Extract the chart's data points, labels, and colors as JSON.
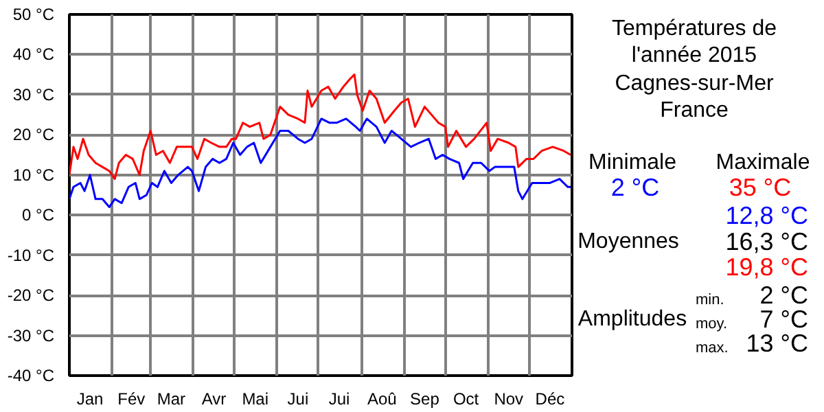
{
  "chart_data": [
    {
      "type": "line",
      "xlim": [
        "2015-01-01",
        "2016-01-01"
      ],
      "ylim": [
        -40,
        50
      ],
      "xticks": [
        {
          "value": "2015-01-01",
          "label": null
        },
        {
          "value": "2015-01-16",
          "label": "Jan"
        },
        {
          "value": "2015-02-01",
          "label": null
        },
        {
          "value": "2015-02-15",
          "label": "Fév"
        },
        {
          "value": "2015-03-01",
          "label": null
        },
        {
          "value": "2015-03-16",
          "label": "Mar"
        },
        {
          "value": "2015-04-01",
          "label": null
        },
        {
          "value": "2015-04-16",
          "label": "Avr"
        },
        {
          "value": "2015-05-01",
          "label": null
        },
        {
          "value": "2015-05-16",
          "label": "Mai"
        },
        {
          "value": "2015-06-01",
          "label": null
        },
        {
          "value": "2015-06-16",
          "label": "Jui"
        },
        {
          "value": "2015-07-01",
          "label": null
        },
        {
          "value": "2015-07-16",
          "label": "Jui"
        },
        {
          "value": "2015-08-01",
          "label": null
        },
        {
          "value": "2015-08-16",
          "label": "Aoû"
        },
        {
          "value": "2015-09-01",
          "label": null
        },
        {
          "value": "2015-09-16",
          "label": "Sep"
        },
        {
          "value": "2015-10-01",
          "label": null
        },
        {
          "value": "2015-10-16",
          "label": "Oct"
        },
        {
          "value": "2015-11-01",
          "label": null
        },
        {
          "value": "2015-11-16",
          "label": "Nov"
        },
        {
          "value": "2015-12-01",
          "label": null
        },
        {
          "value": "2015-12-16",
          "label": "Déc"
        },
        {
          "value": "2016-01-01",
          "label": null
        }
      ],
      "yticks": [
        {
          "value": -40,
          "label": "-40 °C"
        },
        {
          "value": -30,
          "label": "-30 °C"
        },
        {
          "value": -20,
          "label": "-20 °C"
        },
        {
          "value": -10,
          "label": "-10 °C"
        },
        {
          "value": 0,
          "label": "0 °C"
        },
        {
          "value": 10,
          "label": "10 °C"
        },
        {
          "value": 20,
          "label": "20 °C"
        },
        {
          "value": 30,
          "label": "30 °C"
        },
        {
          "value": 40,
          "label": "40 °C"
        },
        {
          "value": 50,
          "label": "50 °C"
        }
      ],
      "grid": true,
      "line_style": "solid",
      "marker": "none",
      "series": [
        {
          "color": "#ff0000",
          "x": [
            "2015-01-01",
            "2015-01-04",
            "2015-01-07",
            "2015-01-11",
            "2015-01-15",
            "2015-01-20",
            "2015-01-25",
            "2015-01-30",
            "2015-02-03",
            "2015-02-06",
            "2015-02-11",
            "2015-02-16",
            "2015-02-21",
            "2015-02-24",
            "2015-03-01",
            "2015-03-05",
            "2015-03-10",
            "2015-03-15",
            "2015-03-20",
            "2015-03-26",
            "2015-03-31",
            "2015-04-04",
            "2015-04-09",
            "2015-04-14",
            "2015-04-20",
            "2015-04-25",
            "2015-04-29",
            "2015-05-02",
            "2015-05-07",
            "2015-05-12",
            "2015-05-19",
            "2015-05-22",
            "2015-05-27",
            "2015-06-03",
            "2015-06-09",
            "2015-06-16",
            "2015-06-21",
            "2015-06-23",
            "2015-06-26",
            "2015-07-03",
            "2015-07-08",
            "2015-07-13",
            "2015-07-19",
            "2015-07-24",
            "2015-07-27",
            "2015-07-29",
            "2015-08-02",
            "2015-08-07",
            "2015-08-12",
            "2015-08-18",
            "2015-08-25",
            "2015-08-30",
            "2015-09-04",
            "2015-09-09",
            "2015-09-16",
            "2015-09-21",
            "2015-09-26",
            "2015-10-01",
            "2015-10-03",
            "2015-10-09",
            "2015-10-16",
            "2015-10-22",
            "2015-10-31",
            "2015-11-03",
            "2015-11-08",
            "2015-11-16",
            "2015-11-21",
            "2015-11-23",
            "2015-11-29",
            "2015-12-04",
            "2015-12-10",
            "2015-12-18",
            "2015-12-26",
            "2015-12-31"
          ],
          "values": [
            10,
            17,
            14,
            19,
            15,
            13,
            12,
            11,
            9,
            13,
            15,
            14,
            10,
            16,
            21,
            15,
            16,
            13,
            17,
            17,
            17,
            14,
            19,
            18,
            17,
            17,
            19,
            19,
            23,
            22,
            23,
            19,
            20,
            27,
            25,
            24,
            23,
            31,
            27,
            31,
            32,
            29,
            32,
            34,
            35,
            30,
            26,
            31,
            29,
            23,
            26,
            28,
            29,
            22,
            27,
            25,
            23,
            22,
            17,
            21,
            17,
            19,
            23,
            16,
            19,
            18,
            17,
            12,
            14,
            14,
            16,
            17,
            16,
            15
          ]
        },
        {
          "color": "#0000ff",
          "x": [
            "2015-01-01",
            "2015-01-04",
            "2015-01-09",
            "2015-01-12",
            "2015-01-16",
            "2015-01-20",
            "2015-01-25",
            "2015-01-30",
            "2015-02-03",
            "2015-02-08",
            "2015-02-13",
            "2015-02-18",
            "2015-02-21",
            "2015-02-26",
            "2015-03-02",
            "2015-03-06",
            "2015-03-11",
            "2015-03-16",
            "2015-03-21",
            "2015-03-28",
            "2015-03-31",
            "2015-04-05",
            "2015-04-10",
            "2015-04-15",
            "2015-04-20",
            "2015-04-25",
            "2015-04-30",
            "2015-05-05",
            "2015-05-10",
            "2015-05-15",
            "2015-05-20",
            "2015-05-27",
            "2015-06-03",
            "2015-06-09",
            "2015-06-16",
            "2015-06-21",
            "2015-06-26",
            "2015-07-03",
            "2015-07-09",
            "2015-07-14",
            "2015-07-21",
            "2015-07-28",
            "2015-07-31",
            "2015-08-05",
            "2015-08-12",
            "2015-08-18",
            "2015-08-23",
            "2015-08-30",
            "2015-09-06",
            "2015-09-12",
            "2015-09-19",
            "2015-09-24",
            "2015-09-29",
            "2015-10-04",
            "2015-10-11",
            "2015-10-14",
            "2015-10-21",
            "2015-10-27",
            "2015-11-02",
            "2015-11-06",
            "2015-11-13",
            "2015-11-20",
            "2015-11-23",
            "2015-11-26",
            "2015-12-03",
            "2015-12-10",
            "2015-12-16",
            "2015-12-23",
            "2015-12-29",
            "2015-12-31"
          ],
          "values": [
            4,
            7,
            8,
            6,
            10,
            4,
            4,
            2,
            4,
            3,
            7,
            8,
            4,
            5,
            8,
            7,
            11,
            8,
            10,
            12,
            11,
            6,
            12,
            14,
            13,
            14,
            18,
            15,
            17,
            18,
            13,
            17,
            21,
            21,
            19,
            18,
            19,
            24,
            23,
            23,
            24,
            22,
            21,
            24,
            22,
            18,
            21,
            19,
            17,
            18,
            19,
            14,
            15,
            14,
            13,
            9,
            13,
            13,
            11,
            12,
            12,
            12,
            6,
            4,
            8,
            8,
            8,
            9,
            7,
            7
          ]
        }
      ]
    },
    {
      "type": "other",
      "title": "Températures de\nl'année 2015",
      "subtitle": "Cagnes-sur-Mer\nFrance",
      "annotations": [
        "Minimale",
        "Maximale",
        "2 °C",
        "35 °C",
        "12,8 °C",
        "Moyennes",
        "16,3 °C",
        "19,8 °C",
        "Amplitudes",
        "min.",
        "2 °C",
        "moy.",
        "7 °C",
        "max.",
        "13 °C"
      ],
      "colors": [
        "#000000",
        "#000000",
        "#0000ff",
        "#ff0000",
        "#0000ff",
        "#000000",
        "#000000",
        "#ff0000",
        "#000000",
        "#000000",
        "#000000",
        "#000000",
        "#000000",
        "#000000",
        "#000000"
      ]
    }
  ]
}
